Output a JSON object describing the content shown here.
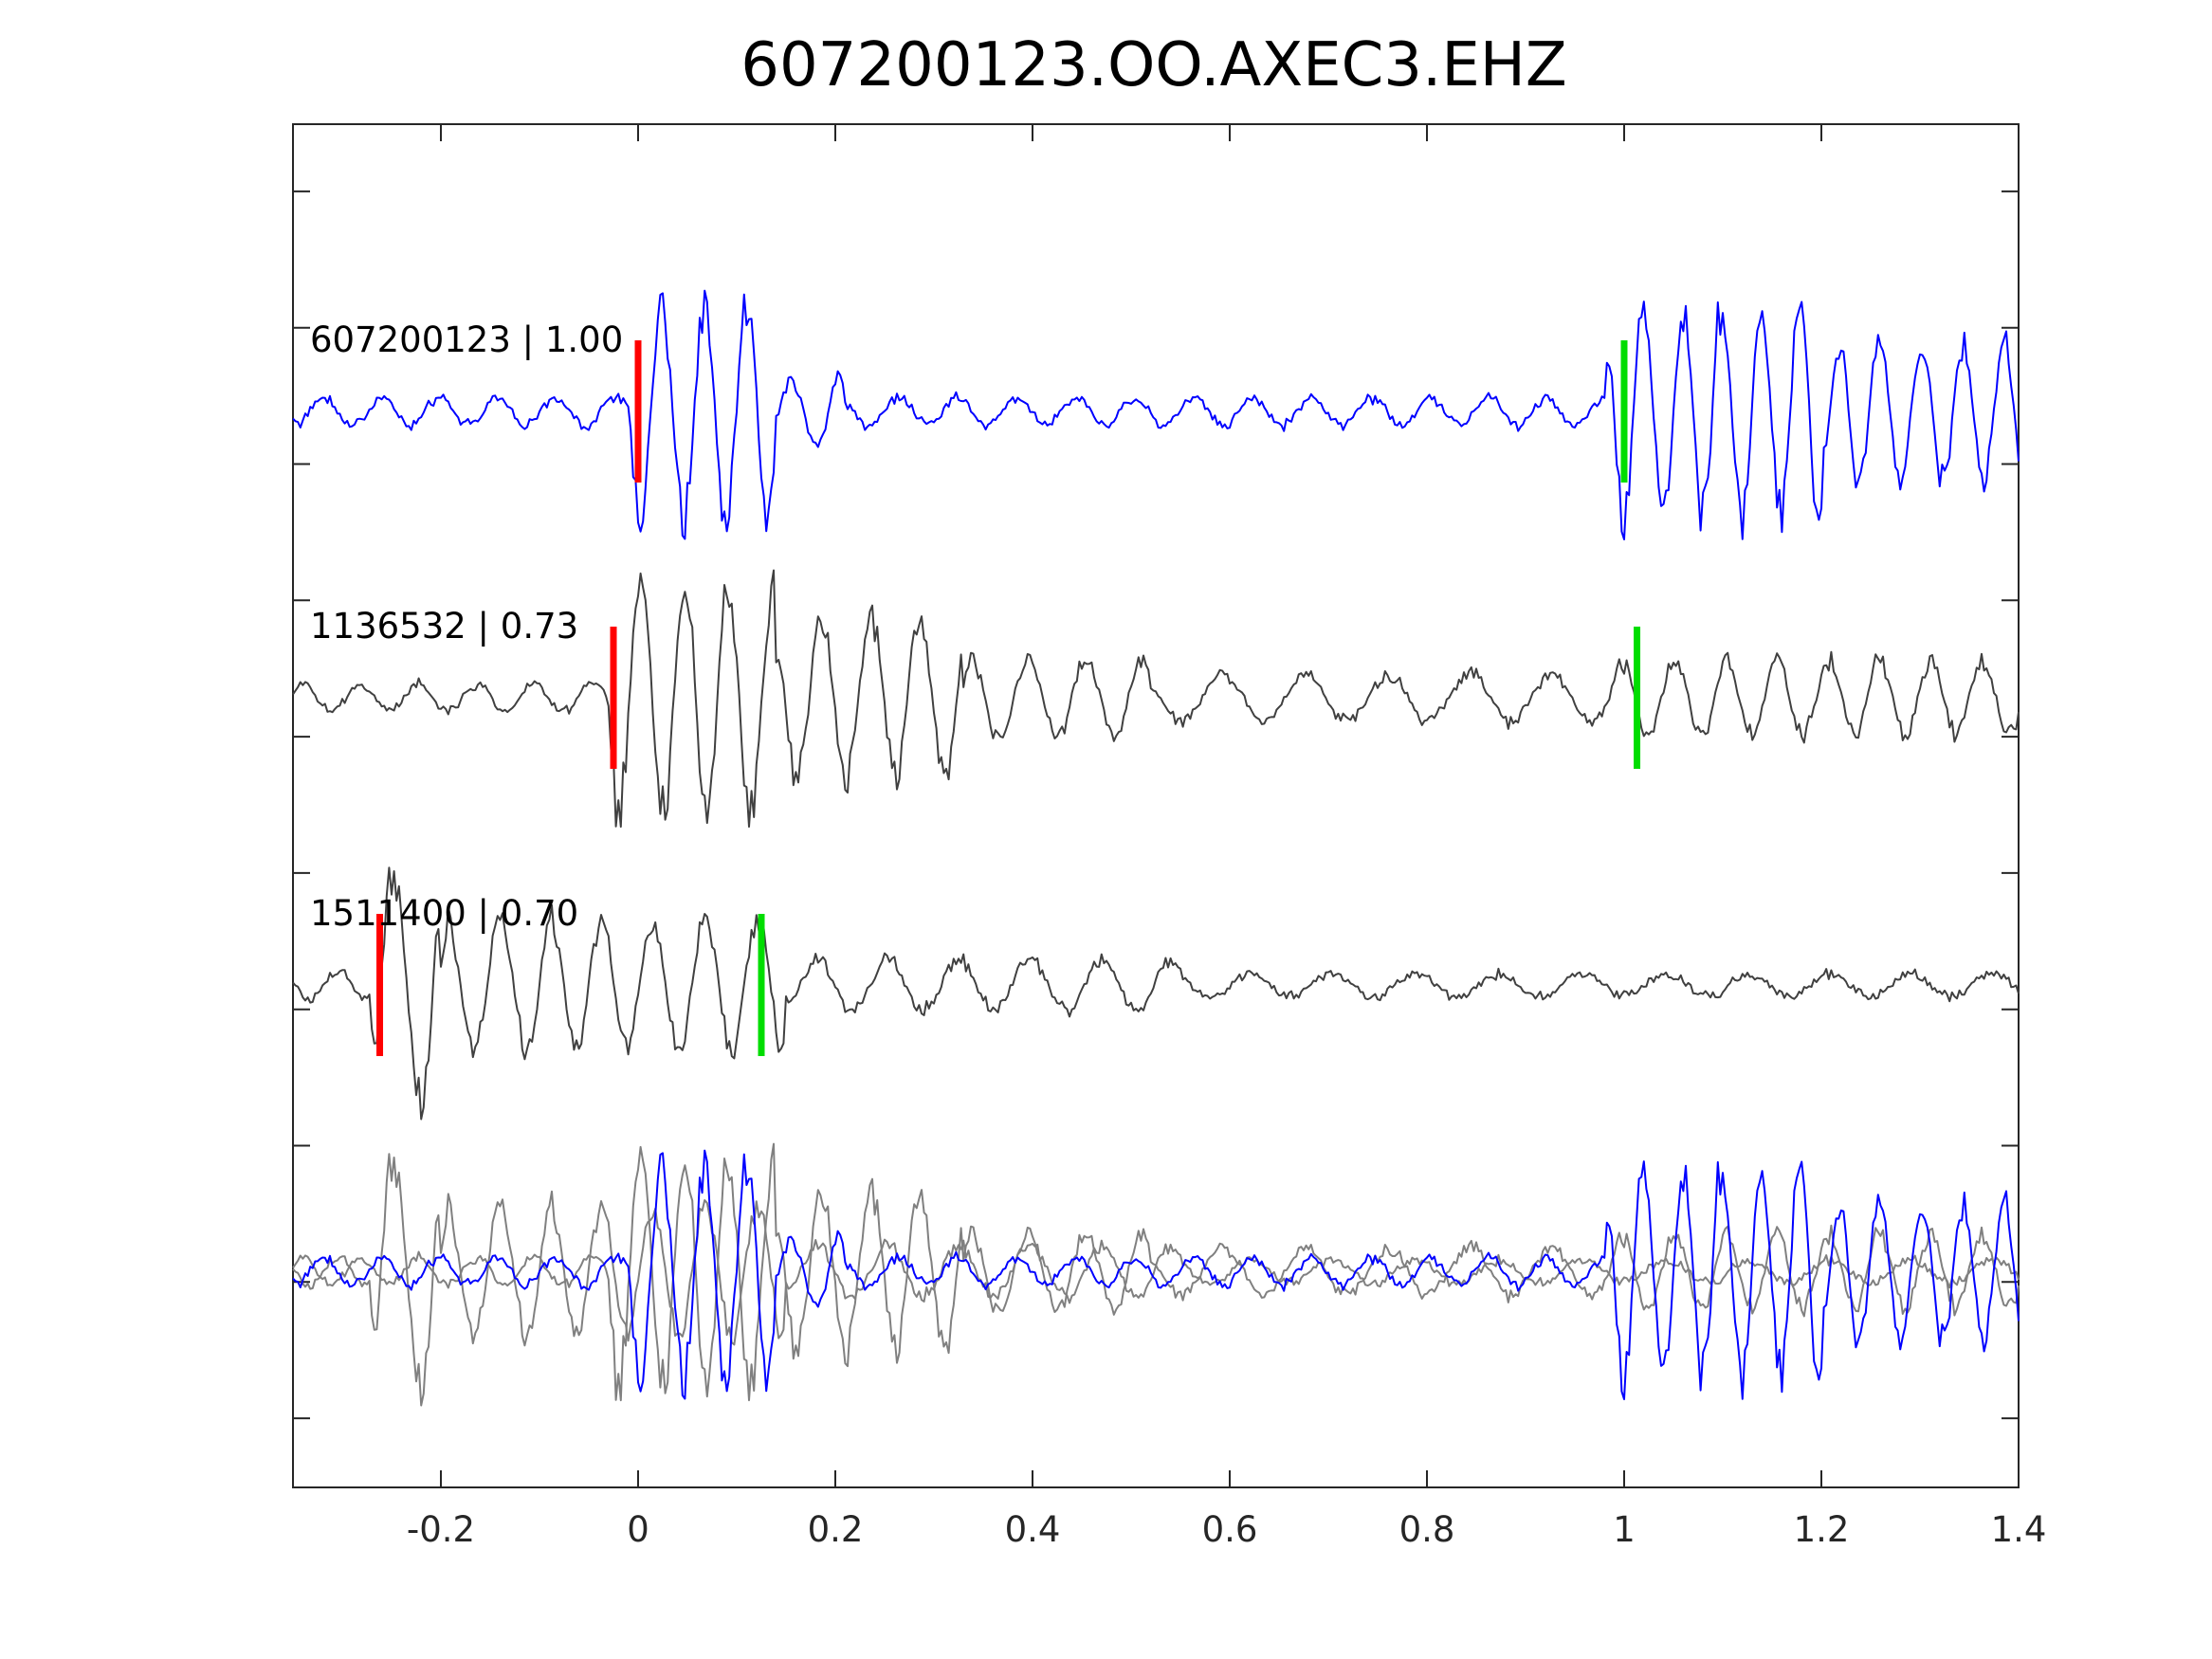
{
  "chart_data": {
    "type": "line",
    "title": "607200123.OO.AXEC3.EHZ",
    "xlabel": "",
    "ylabel": "",
    "xlim": [
      -0.35,
      1.4
    ],
    "xticks": [
      -0.2,
      0,
      0.2,
      0.4,
      0.6,
      0.8,
      1,
      1.2,
      1.4
    ],
    "xtick_labels": [
      "-0.2",
      "0",
      "0.2",
      "0.4",
      "0.6",
      "0.8",
      "1",
      "1.2",
      "1.4"
    ],
    "yticks_count": 10,
    "ytick_labels_shown": false,
    "grid": false,
    "legend": "none",
    "colors": {
      "template": "#0000ff",
      "match": "#404040",
      "match_overlay": "#808080",
      "p_pick": "#ff0000",
      "s_pick": "#00dd00"
    },
    "series": [
      {
        "label": "607200123 | 1.00",
        "row": 0,
        "color": "#0000ff",
        "p_pick": 0.0,
        "s_pick": 1.0,
        "segments": [
          {
            "t0": -0.35,
            "t1": -0.01,
            "amp": 0.12,
            "freq": 17
          },
          {
            "t0": -0.01,
            "t1": 0.14,
            "amp": 0.92,
            "freq": 23
          },
          {
            "t0": 0.14,
            "t1": 0.21,
            "amp": 0.3,
            "freq": 20
          },
          {
            "t0": 0.21,
            "t1": 0.98,
            "amp": 0.12,
            "freq": 17
          },
          {
            "t0": 0.98,
            "t1": 1.2,
            "amp": 0.92,
            "freq": 25
          },
          {
            "t0": 1.2,
            "t1": 1.4,
            "amp": 0.6,
            "freq": 24
          }
        ]
      },
      {
        "label": "1136532 | 0.73",
        "row": 1,
        "color": "#404040",
        "p_pick": -0.025,
        "s_pick": 1.013,
        "segments": [
          {
            "t0": -0.35,
            "t1": -0.03,
            "amp": 0.12,
            "freq": 17
          },
          {
            "t0": -0.03,
            "t1": 0.14,
            "amp": 1.0,
            "freq": 22
          },
          {
            "t0": 0.14,
            "t1": 0.33,
            "amp": 0.7,
            "freq": 20
          },
          {
            "t0": 0.33,
            "t1": 0.52,
            "amp": 0.35,
            "freq": 17
          },
          {
            "t0": 0.52,
            "t1": 0.98,
            "amp": 0.2,
            "freq": 12
          },
          {
            "t0": 0.98,
            "t1": 1.4,
            "amp": 0.32,
            "freq": 19
          }
        ]
      },
      {
        "label": "1511400 | 0.70",
        "row": 2,
        "color": "#404040",
        "p_pick": -0.262,
        "s_pick": 0.125,
        "segments": [
          {
            "t0": -0.35,
            "t1": -0.27,
            "amp": 0.12,
            "freq": 17
          },
          {
            "t0": -0.27,
            "t1": -0.2,
            "amp": 1.05,
            "freq": 19
          },
          {
            "t0": -0.2,
            "t1": 0.15,
            "amp": 0.55,
            "freq": 19
          },
          {
            "t0": 0.15,
            "t1": 0.55,
            "amp": 0.22,
            "freq": 14
          },
          {
            "t0": 0.55,
            "t1": 1.4,
            "amp": 0.1,
            "freq": 12
          }
        ]
      }
    ],
    "overlay_row": 3
  }
}
